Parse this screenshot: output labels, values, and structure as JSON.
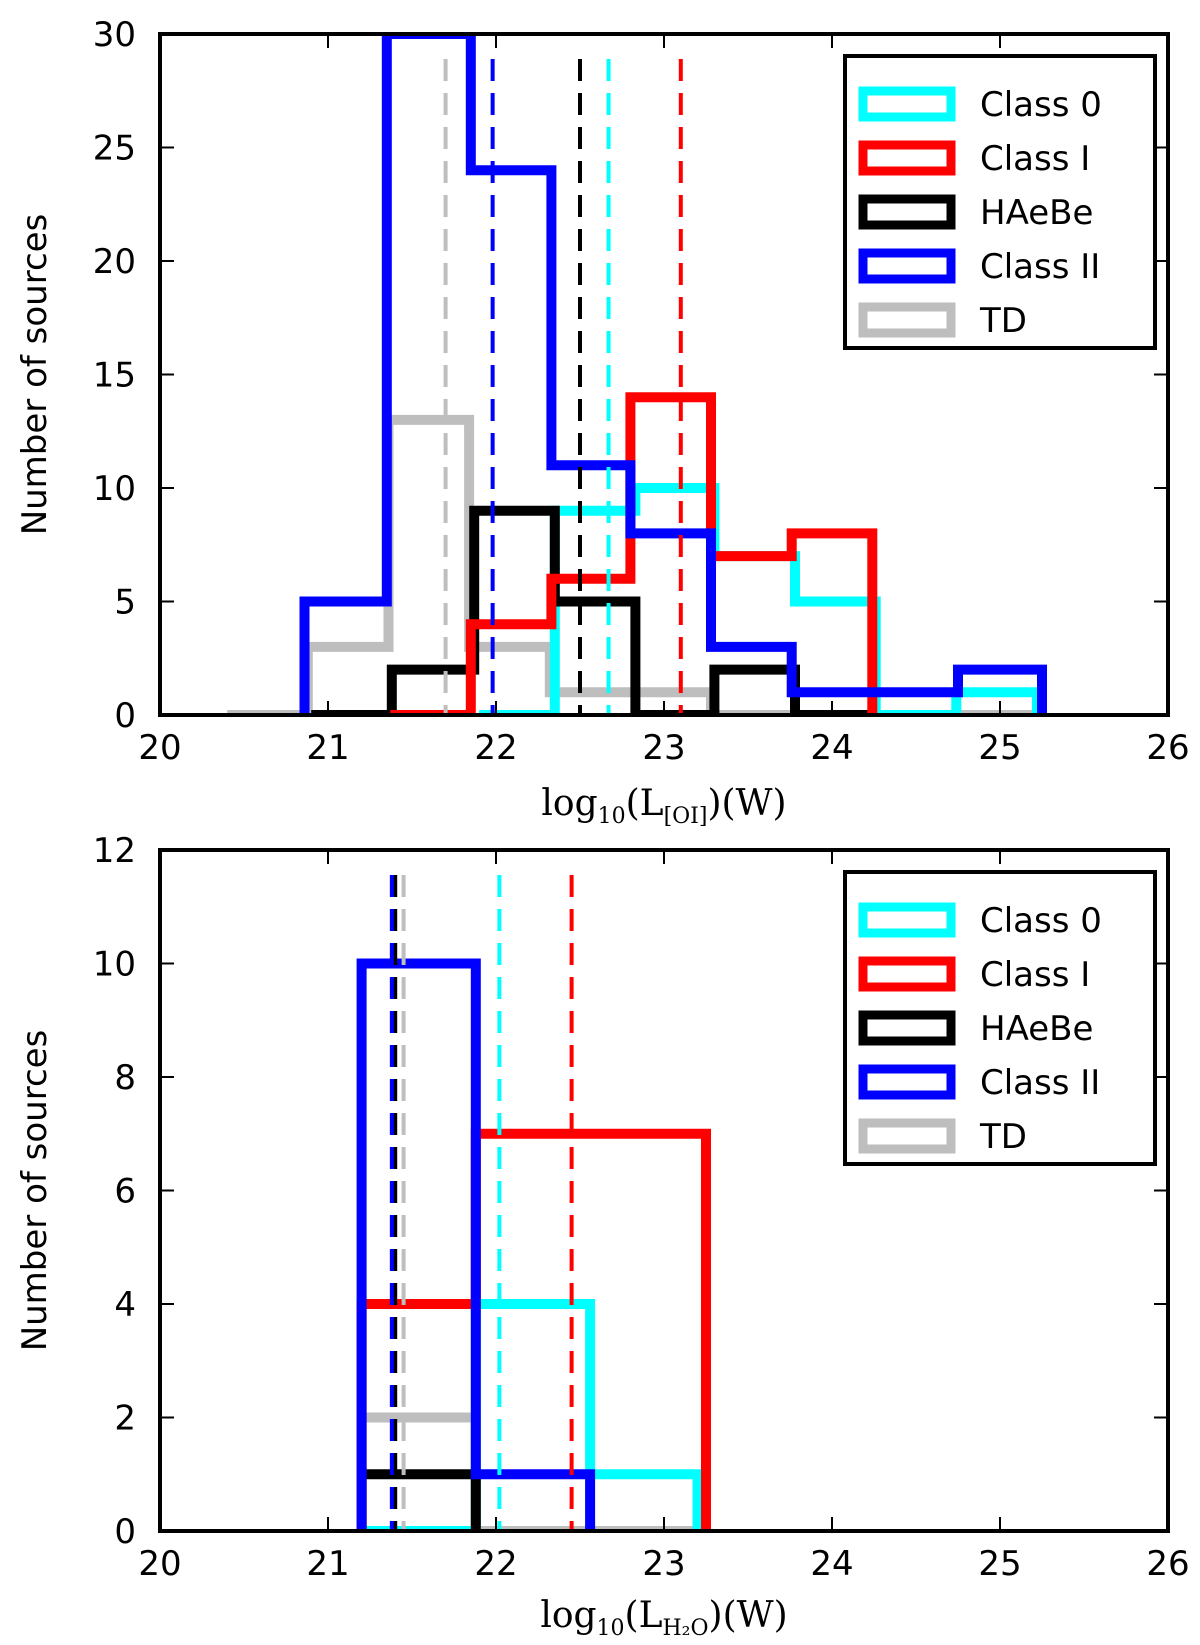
{
  "chart_data": [
    {
      "type": "histogram",
      "panel": "top",
      "xlabel": {
        "base": "log",
        "base_sub": "10",
        "open": "(L",
        "sub": "[OI]",
        "close": ")(W)"
      },
      "ylabel": "Number of sources",
      "xlim": [
        20,
        26
      ],
      "ylim": [
        0,
        30
      ],
      "xticks": [
        20,
        21,
        22,
        23,
        24,
        25,
        26
      ],
      "yticks": [
        0,
        5,
        10,
        15,
        20,
        25,
        30
      ],
      "legend_position": "top-right",
      "series": [
        {
          "name": "Class 0",
          "color": "#00ffff",
          "edges": [
            21.9,
            22.35,
            22.83,
            23.3,
            23.78,
            24.26,
            24.74,
            25.22
          ],
          "counts": [
            0,
            9,
            10,
            7,
            5,
            0,
            1
          ],
          "median": 22.67
        },
        {
          "name": "Class I",
          "color": "#ff0000",
          "edges": [
            21.37,
            21.85,
            22.33,
            22.8,
            23.28,
            23.76,
            24.24
          ],
          "counts": [
            0,
            4,
            6,
            14,
            7,
            8
          ],
          "median": 23.1
        },
        {
          "name": "HAeBe",
          "color": "#000000",
          "edges": [
            20.9,
            21.38,
            21.87,
            22.35,
            22.83,
            23.3,
            23.78,
            24.26
          ],
          "counts": [
            0,
            2,
            9,
            5,
            0,
            2,
            0
          ],
          "median": 22.5
        },
        {
          "name": "Class II",
          "color": "#0000ff",
          "edges": [
            20.86,
            21.35,
            21.85,
            22.33,
            22.8,
            23.28,
            23.76,
            24.25,
            24.75,
            25.25
          ],
          "counts": [
            5,
            30,
            24,
            11,
            8,
            3,
            1,
            1,
            2
          ],
          "median": 21.98
        },
        {
          "name": "TD",
          "color": "#bebebe",
          "edges": [
            20.4,
            20.88,
            21.36,
            21.84,
            22.32,
            22.8,
            23.28,
            23.76,
            24.24,
            24.72,
            25.2
          ],
          "counts": [
            0,
            3,
            13,
            3,
            1,
            1,
            0,
            0,
            0,
            0
          ],
          "median": 21.7
        }
      ]
    },
    {
      "type": "histogram",
      "panel": "bottom",
      "xlabel": {
        "base": "log",
        "base_sub": "10",
        "open": "(L",
        "sub": "H₂O",
        "close": ")(W)"
      },
      "ylabel": "Number of sources",
      "xlim": [
        20,
        26
      ],
      "ylim": [
        0,
        12
      ],
      "xticks": [
        20,
        21,
        22,
        23,
        24,
        25,
        26
      ],
      "yticks": [
        0,
        2,
        4,
        6,
        8,
        10,
        12
      ],
      "legend_position": "top-right",
      "series": [
        {
          "name": "Class 0",
          "color": "#00ffff",
          "edges": [
            21.2,
            21.88,
            22.56,
            23.2
          ],
          "counts": [
            0,
            4,
            1
          ],
          "median": 22.02
        },
        {
          "name": "Class I",
          "color": "#ff0000",
          "edges": [
            21.2,
            21.88,
            23.25
          ],
          "counts": [
            4,
            7
          ],
          "median": 22.45
        },
        {
          "name": "HAeBe",
          "color": "#000000",
          "edges": [
            21.2,
            21.88
          ],
          "counts": [
            1
          ],
          "median": 21.4
        },
        {
          "name": "Class II",
          "color": "#0000ff",
          "edges": [
            21.2,
            21.88,
            22.56
          ],
          "counts": [
            10,
            1
          ],
          "median": 21.38
        },
        {
          "name": "TD",
          "color": "#bebebe",
          "edges": [
            21.2,
            21.88,
            23.2
          ],
          "counts": [
            2,
            0
          ],
          "median": 21.45
        }
      ]
    }
  ]
}
